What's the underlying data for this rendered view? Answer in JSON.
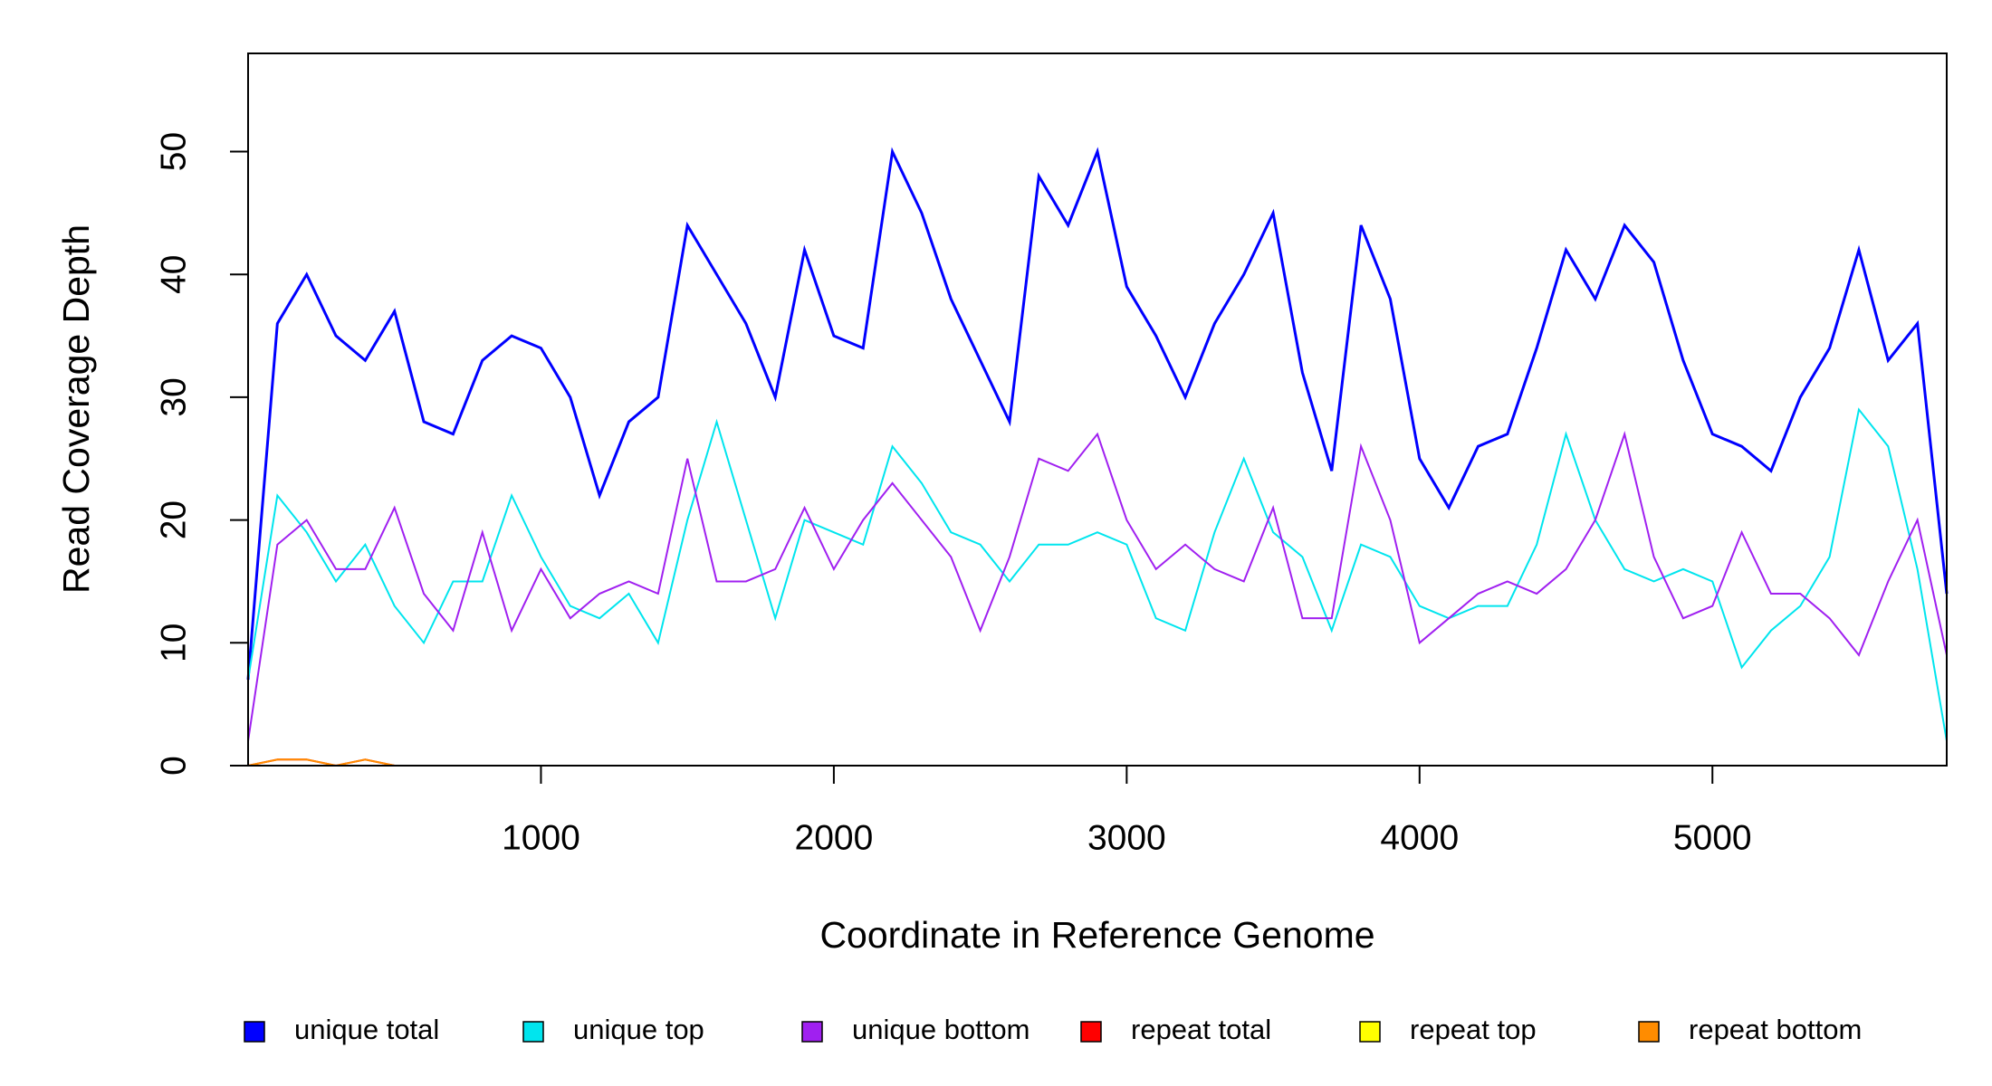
{
  "chart_data": {
    "type": "line",
    "xlabel": "Coordinate in Reference Genome",
    "ylabel": "Read Coverage Depth",
    "x": [
      0,
      100,
      200,
      300,
      400,
      500,
      600,
      700,
      800,
      900,
      1000,
      1100,
      1200,
      1300,
      1400,
      1500,
      1600,
      1700,
      1800,
      1900,
      2000,
      2100,
      2200,
      2300,
      2400,
      2500,
      2600,
      2700,
      2800,
      2900,
      3000,
      3100,
      3200,
      3300,
      3400,
      3500,
      3600,
      3700,
      3800,
      3900,
      4000,
      4100,
      4200,
      4300,
      4400,
      4500,
      4600,
      4700,
      4800,
      4900,
      5000,
      5100,
      5200,
      5300,
      5400,
      5500,
      5600,
      5700,
      5800
    ],
    "series": [
      {
        "name": "unique total",
        "color": "#0000ff",
        "values": [
          7,
          36,
          40,
          35,
          33,
          37,
          28,
          27,
          33,
          35,
          34,
          30,
          22,
          28,
          30,
          44,
          40,
          36,
          30,
          42,
          35,
          34,
          50,
          45,
          38,
          33,
          28,
          48,
          44,
          50,
          39,
          35,
          30,
          36,
          40,
          45,
          32,
          24,
          44,
          38,
          25,
          21,
          26,
          27,
          34,
          42,
          38,
          44,
          41,
          33,
          27,
          26,
          24,
          30,
          34,
          42,
          33,
          36,
          14
        ]
      },
      {
        "name": "unique top",
        "color": "#00e5ee",
        "values": [
          7,
          22,
          19,
          15,
          18,
          13,
          10,
          15,
          15,
          22,
          17,
          13,
          12,
          14,
          10,
          20,
          28,
          20,
          12,
          20,
          19,
          18,
          26,
          23,
          19,
          18,
          15,
          18,
          18,
          19,
          18,
          12,
          11,
          19,
          25,
          19,
          17,
          11,
          18,
          17,
          13,
          12,
          13,
          13,
          18,
          27,
          20,
          16,
          15,
          16,
          15,
          8,
          11,
          13,
          17,
          29,
          26,
          16,
          2
        ]
      },
      {
        "name": "unique bottom",
        "color": "#a020f0",
        "values": [
          2,
          18,
          20,
          16,
          16,
          21,
          14,
          11,
          19,
          11,
          16,
          12,
          14,
          15,
          14,
          25,
          15,
          15,
          16,
          21,
          16,
          20,
          23,
          20,
          17,
          11,
          17,
          25,
          24,
          27,
          20,
          16,
          18,
          16,
          15,
          21,
          12,
          12,
          26,
          20,
          10,
          12,
          14,
          15,
          14,
          16,
          20,
          27,
          17,
          12,
          13,
          19,
          14,
          14,
          12,
          9,
          15,
          20,
          9
        ]
      },
      {
        "name": "repeat total",
        "color": "#ff0000",
        "values": [
          0,
          0.5,
          0.5,
          0,
          0.5,
          0,
          0,
          0,
          0,
          0,
          0,
          0,
          0,
          0,
          0,
          0,
          0,
          0,
          0,
          0,
          0,
          0,
          0,
          0,
          0,
          0,
          0,
          0,
          0,
          0,
          0,
          0,
          0,
          0,
          0,
          0,
          0,
          0,
          0,
          0,
          0,
          0,
          0,
          0,
          0,
          0,
          0,
          0,
          0,
          0,
          0,
          0,
          0,
          0,
          0,
          0,
          0,
          0,
          0
        ]
      },
      {
        "name": "repeat top",
        "color": "#ffff00",
        "values": [
          0,
          0,
          0,
          0,
          0,
          0,
          0,
          0,
          0,
          0,
          0,
          0,
          0,
          0,
          0,
          0,
          0,
          0,
          0,
          0,
          0,
          0,
          0,
          0,
          0,
          0,
          0,
          0,
          0,
          0,
          0,
          0,
          0,
          0,
          0,
          0,
          0,
          0,
          0,
          0,
          0,
          0,
          0,
          0,
          0,
          0,
          0,
          0,
          0,
          0,
          0,
          0,
          0,
          0,
          0,
          0,
          0,
          0,
          0
        ]
      },
      {
        "name": "repeat bottom",
        "color": "#ff8c00",
        "values": [
          0,
          0.5,
          0.5,
          0,
          0.5,
          0,
          0,
          0,
          0,
          0,
          0,
          0,
          0,
          0,
          0,
          0,
          0,
          0,
          0,
          0,
          0,
          0,
          0,
          0,
          0,
          0,
          0,
          0,
          0,
          0,
          0,
          0,
          0,
          0,
          0,
          0,
          0,
          0,
          0,
          0,
          0,
          0,
          0,
          0,
          0,
          0,
          0,
          0,
          0,
          0,
          0,
          0,
          0,
          0,
          0,
          0,
          0,
          0,
          0
        ]
      }
    ],
    "xlim": [
      0,
      5800
    ],
    "xticks": [
      1000,
      2000,
      3000,
      4000,
      5000
    ],
    "ylim": [
      0,
      58
    ],
    "yticks": [
      0,
      10,
      20,
      30,
      40,
      50
    ],
    "legend": "bottom"
  }
}
